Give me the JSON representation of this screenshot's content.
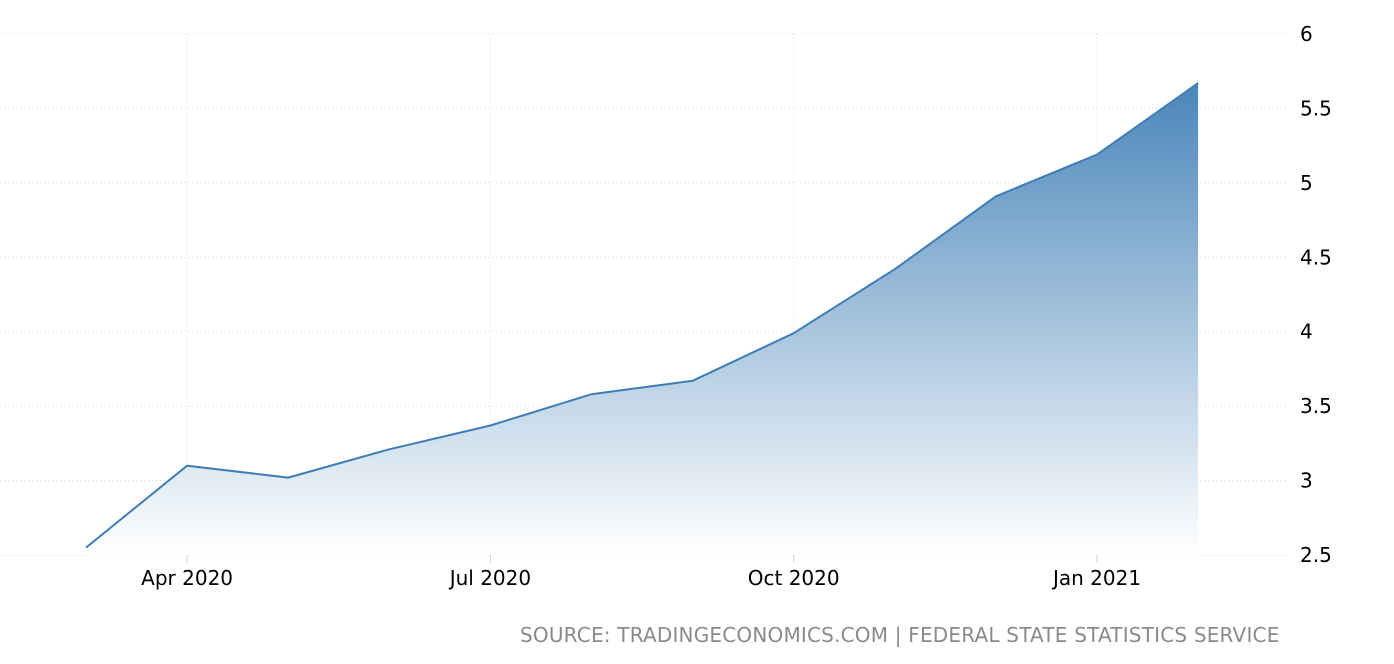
{
  "chart_data": {
    "type": "area",
    "x": [
      "2020-03",
      "2020-04",
      "2020-05",
      "2020-06",
      "2020-07",
      "2020-08",
      "2020-09",
      "2020-10",
      "2020-11",
      "2020-12",
      "2021-01",
      "2021-02"
    ],
    "values": [
      2.55,
      3.1,
      3.02,
      3.21,
      3.37,
      3.58,
      3.67,
      3.99,
      4.42,
      4.91,
      5.19,
      5.67
    ],
    "xticks": [
      "Apr 2020",
      "Jul 2020",
      "Oct 2020",
      "Jan 2021"
    ],
    "yticks": [
      "2.5",
      "3",
      "3.5",
      "4",
      "4.5",
      "5",
      "5.5",
      "6"
    ],
    "ylim": [
      2.5,
      6
    ],
    "yaxis_side": "right",
    "grid": true,
    "colors": {
      "line": "#3f7db5",
      "fill_top": "#4a86ba",
      "fill_bottom": "#ffffff"
    }
  },
  "source": "SOURCE: TRADINGECONOMICS.COM | FEDERAL STATE STATISTICS SERVICE"
}
